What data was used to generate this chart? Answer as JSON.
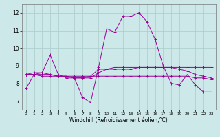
{
  "xlabel": "Windchill (Refroidissement éolien,°C)",
  "background_color": "#cce8e8",
  "grid_color": "#aacccc",
  "line_color": "#990099",
  "xlim": [
    -0.5,
    23.5
  ],
  "ylim": [
    6.5,
    12.5
  ],
  "xticks": [
    0,
    1,
    2,
    3,
    4,
    5,
    6,
    7,
    8,
    9,
    10,
    11,
    12,
    13,
    14,
    15,
    16,
    17,
    18,
    19,
    20,
    21,
    22,
    23
  ],
  "yticks": [
    7,
    8,
    9,
    10,
    11,
    12
  ],
  "hours": [
    0,
    1,
    2,
    3,
    4,
    5,
    6,
    7,
    8,
    9,
    10,
    11,
    12,
    13,
    14,
    15,
    16,
    17,
    18,
    19,
    20,
    21,
    22,
    23
  ],
  "series1": [
    7.7,
    8.5,
    8.6,
    9.6,
    8.5,
    8.3,
    8.3,
    7.2,
    6.9,
    8.9,
    11.1,
    10.9,
    11.8,
    11.8,
    12.0,
    11.5,
    10.5,
    9.0,
    8.0,
    7.9,
    8.5,
    7.9,
    7.5,
    7.5
  ],
  "series2": [
    8.5,
    8.6,
    8.6,
    8.5,
    8.4,
    8.4,
    8.3,
    8.3,
    8.4,
    8.8,
    8.8,
    8.8,
    8.8,
    8.8,
    8.9,
    8.9,
    8.9,
    8.9,
    8.9,
    8.9,
    8.9,
    8.9,
    8.9,
    8.9
  ],
  "series3": [
    8.5,
    8.5,
    8.5,
    8.5,
    8.4,
    8.4,
    8.4,
    8.4,
    8.4,
    8.4,
    8.4,
    8.4,
    8.4,
    8.4,
    8.4,
    8.4,
    8.4,
    8.4,
    8.4,
    8.4,
    8.4,
    8.3,
    8.3,
    8.2
  ],
  "series4": [
    8.5,
    8.5,
    8.4,
    8.4,
    8.4,
    8.4,
    8.3,
    8.3,
    8.3,
    8.6,
    8.8,
    8.9,
    8.9,
    8.9,
    8.9,
    8.9,
    8.9,
    8.9,
    8.9,
    8.8,
    8.7,
    8.5,
    8.4,
    8.3
  ],
  "xlabel_fontsize": 5.5,
  "xtick_fontsize": 4.2,
  "ytick_fontsize": 5.5,
  "linewidth": 0.7,
  "markersize": 2.5
}
